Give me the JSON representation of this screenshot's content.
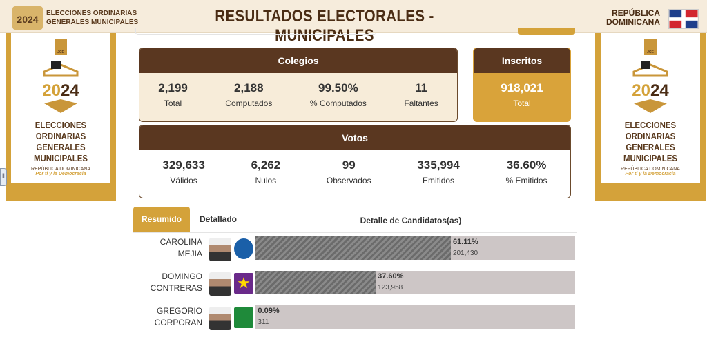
{
  "header": {
    "logo_text": "2024",
    "left_line1": "ELECCIONES ORDINARIAS",
    "left_line2": "GENERALES MUNICIPALES",
    "title": "RESULTADOS ELECTORALES - MUNICIPALES",
    "right_line1": "REPÚBLICA",
    "right_line2": "DOMINICANA"
  },
  "side": {
    "jce": "JCE",
    "year_a": "20",
    "year_b": "24",
    "line1": "ELECCIONES ORDINARIAS",
    "line2": "GENERALES MUNICIPALES",
    "country": "REPÚBLICA DOMINICANA",
    "slogan": "Por ti y la Democracia"
  },
  "colegios": {
    "title": "Colegios",
    "stats": [
      {
        "value": "2,199",
        "label": "Total"
      },
      {
        "value": "2,188",
        "label": "Computados"
      },
      {
        "value": "99.50%",
        "label": "% Computados"
      },
      {
        "value": "11",
        "label": "Faltantes"
      }
    ]
  },
  "inscritos": {
    "title": "Inscritos",
    "value": "918,021",
    "label": "Total"
  },
  "votos": {
    "title": "Votos",
    "stats": [
      {
        "value": "329,633",
        "label": "Válidos"
      },
      {
        "value": "6,262",
        "label": "Nulos"
      },
      {
        "value": "99",
        "label": "Observados"
      },
      {
        "value": "335,994",
        "label": "Emitidos"
      },
      {
        "value": "36.60%",
        "label": "% Emitidos"
      }
    ]
  },
  "tabs": {
    "resumido": "Resumido",
    "detallado": "Detallado",
    "heading": "Detalle de Candidatos(as)"
  },
  "candidates": [
    {
      "first": "CAROLINA",
      "last": "MEJIA",
      "percent": "61.11%",
      "share": 61.11,
      "votes": "201,430",
      "party_color": "#1a5fa8"
    },
    {
      "first": "DOMINGO",
      "last": "CONTRERAS",
      "percent": "37.60%",
      "share": 37.6,
      "votes": "123,958",
      "party_color": "#6a2a8a"
    },
    {
      "first": "GREGORIO",
      "last": "CORPORAN",
      "percent": "0.09%",
      "share": 0.09,
      "votes": "311",
      "party_color": "#1f8a3a"
    }
  ],
  "colors": {
    "brown": "#5a3720",
    "gold": "#d4a23a",
    "bar_bg": "#cdc6c6"
  }
}
